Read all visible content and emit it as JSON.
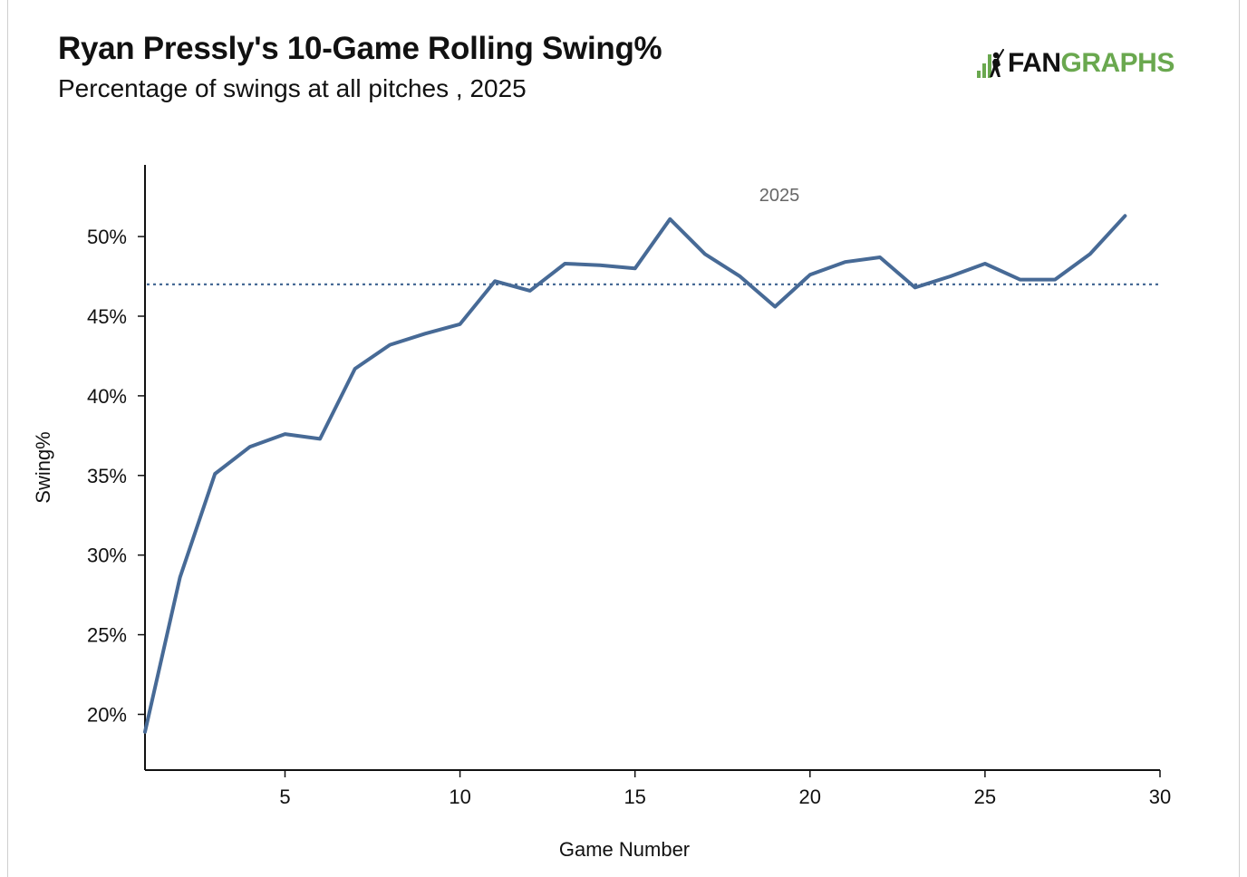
{
  "header": {
    "title": "Ryan Pressly's 10-Game Rolling Swing%",
    "subtitle": "Percentage of swings at all pitches , 2025"
  },
  "logo": {
    "prefix": "FAN",
    "suffix": "GRAPHS",
    "icon": "fangraphs-batter-icon",
    "colors": {
      "prefix": "#111111",
      "suffix": "#6aa84f"
    }
  },
  "chart_data": {
    "type": "line",
    "title": "Ryan Pressly's 10-Game Rolling Swing%",
    "subtitle": "Percentage of swings at all pitches , 2025",
    "xlabel": "Game Number",
    "ylabel": "Swing%",
    "xlim": [
      1,
      30
    ],
    "ylim": [
      16.5,
      54.5
    ],
    "xticks": [
      5,
      10,
      15,
      20,
      25,
      30
    ],
    "yticks": [
      20,
      25,
      30,
      35,
      40,
      45,
      50
    ],
    "ytick_labels": [
      "20%",
      "25%",
      "30%",
      "35%",
      "40%",
      "45%",
      "50%"
    ],
    "grid": false,
    "legend": "none",
    "series": [
      {
        "name": "2025",
        "color": "#476a96",
        "x": [
          1,
          2,
          3,
          4,
          5,
          6,
          7,
          8,
          9,
          10,
          11,
          12,
          13,
          14,
          15,
          16,
          17,
          18,
          19,
          20,
          21,
          22,
          23,
          24,
          25,
          26,
          27,
          28,
          29
        ],
        "values": [
          18.9,
          28.6,
          35.1,
          36.8,
          37.6,
          37.3,
          41.7,
          43.2,
          43.9,
          44.5,
          47.2,
          46.6,
          48.3,
          48.2,
          48.0,
          51.1,
          48.9,
          47.5,
          45.6,
          47.6,
          48.4,
          48.7,
          46.8,
          47.5,
          48.3,
          47.3,
          47.3,
          48.9,
          51.3
        ]
      }
    ],
    "reference_line": {
      "style": "dotted",
      "color": "#476a96",
      "value": 47.0
    }
  }
}
